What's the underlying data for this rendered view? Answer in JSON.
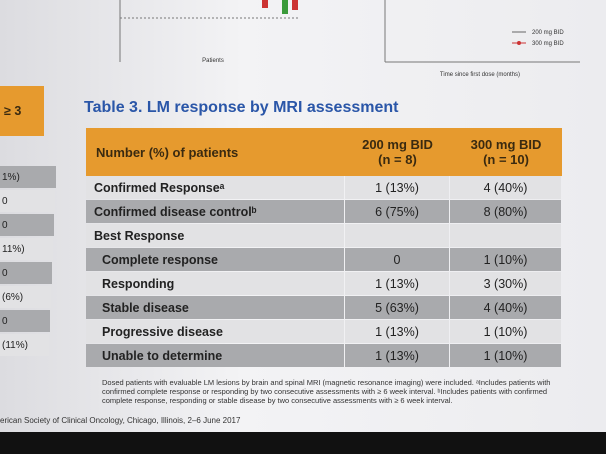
{
  "top_charts": {
    "left_x_label": "Patients",
    "right_x_label": "Time since first dose (months)",
    "legend": [
      "200 mg BID",
      "300 mg BID"
    ]
  },
  "left_table": {
    "header": "≥ 3",
    "cells": [
      "1%)",
      "0",
      "0",
      "11%)",
      "0",
      "(6%)",
      "0",
      "(11%)"
    ]
  },
  "table": {
    "title": "Table 3. LM response by MRI assessment",
    "columns": [
      {
        "lines": [
          "Number (%) of patients"
        ]
      },
      {
        "lines": [
          "200 mg BID",
          "(n = 8)"
        ]
      },
      {
        "lines": [
          "300 mg BID",
          "(n = 10)"
        ]
      }
    ],
    "rows": [
      {
        "label": "Confirmed Responseᵃ",
        "values": [
          "1 (13%)",
          "4 (40%)"
        ]
      },
      {
        "label": "Confirmed disease controlᵇ",
        "values": [
          "6 (75%)",
          "8 (80%)"
        ]
      },
      {
        "label": "Best Response",
        "rows": [
          {
            "label": "Complete response",
            "values": [
              "0",
              "1 (10%)"
            ]
          },
          {
            "label": "Responding",
            "values": [
              "1 (13%)",
              "3 (30%)"
            ]
          },
          {
            "label": "Stable disease",
            "values": [
              "5 (63%)",
              "4 (40%)"
            ]
          },
          {
            "label": "Progressive disease",
            "values": [
              "1 (13%)",
              "1 (10%)"
            ]
          },
          {
            "label": "Unable to determine",
            "values": [
              "1 (13%)",
              "1 (10%)"
            ]
          }
        ]
      }
    ]
  },
  "footnote": "Dosed patients with evaluable LM lesions by brain and spinal MRI (magnetic resonance imaging) were included. ᵃIncludes patients with confirmed complete response or responding by two consecutive assessments with ≥ 6 week interval. ᵇIncludes patients with confirmed complete response, responding or stable disease by two consecutive assessments with ≥ 6 week interval.",
  "footer": "erican Society of Clinical Oncology, Chicago, Illinois, 2–6 June 2017"
}
